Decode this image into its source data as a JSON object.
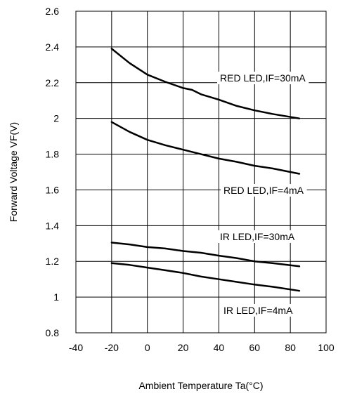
{
  "chart_data": {
    "type": "line",
    "xlabel": "Ambient Temperature Ta(°C)",
    "ylabel": "Forward Voltage VF(V)",
    "xlim": [
      -40,
      100
    ],
    "ylim": [
      0.8,
      2.6
    ],
    "xticks": [
      "-40",
      "-20",
      "0",
      "20",
      "40",
      "60",
      "80",
      "100"
    ],
    "yticks": [
      "0.8",
      "1",
      "1.2",
      "1.4",
      "1.6",
      "1.8",
      "2",
      "2.2",
      "2.4",
      "2.6"
    ],
    "grid": "vertical and horizontal",
    "series": [
      {
        "name": "RED LED,IF=30mA",
        "x": [
          -20,
          -10,
          0,
          10,
          20,
          25,
          30,
          40,
          50,
          60,
          70,
          85
        ],
        "y": [
          2.39,
          2.31,
          2.245,
          2.205,
          2.17,
          2.16,
          2.135,
          2.105,
          2.07,
          2.045,
          2.025,
          2.0
        ]
      },
      {
        "name": "RED LED,IF=4mA",
        "x": [
          -20,
          -10,
          0,
          10,
          20,
          30,
          40,
          50,
          60,
          70,
          85
        ],
        "y": [
          1.98,
          1.925,
          1.88,
          1.85,
          1.825,
          1.8,
          1.775,
          1.757,
          1.735,
          1.72,
          1.69
        ]
      },
      {
        "name": "IR LED,IF=30mA",
        "x": [
          -20,
          -10,
          0,
          10,
          20,
          30,
          40,
          50,
          60,
          70,
          85
        ],
        "y": [
          1.305,
          1.295,
          1.28,
          1.272,
          1.258,
          1.248,
          1.232,
          1.218,
          1.2,
          1.19,
          1.172
        ]
      },
      {
        "name": "IR LED,IF=4mA",
        "x": [
          -20,
          -10,
          0,
          10,
          20,
          30,
          40,
          50,
          60,
          70,
          85
        ],
        "y": [
          1.19,
          1.18,
          1.165,
          1.15,
          1.135,
          1.115,
          1.1,
          1.085,
          1.07,
          1.058,
          1.035
        ]
      }
    ]
  }
}
